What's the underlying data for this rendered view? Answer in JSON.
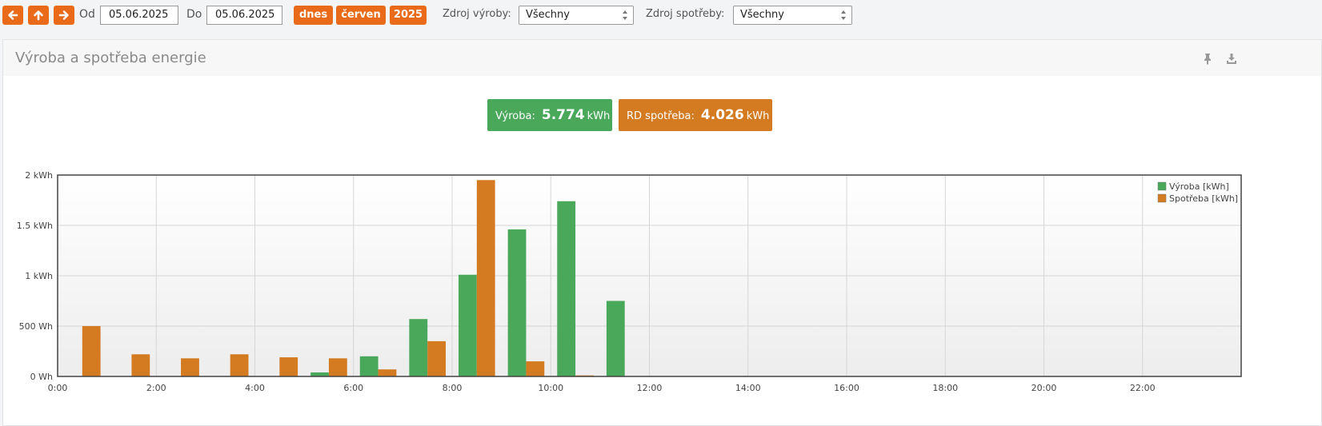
{
  "toolbar": {
    "from_label": "Od",
    "from_value": "05.06.2025",
    "to_label": "Do",
    "to_value": "05.06.2025",
    "quick_today": "dnes",
    "quick_month": "červen",
    "quick_year": "2025",
    "production_source_label": "Zdroj výroby:",
    "production_source_value": "Všechny",
    "consumption_source_label": "Zdroj spotřeby:",
    "consumption_source_value": "Všechny"
  },
  "icons": {
    "prev": "arrow-left-icon",
    "up": "arrow-up-icon",
    "next": "arrow-right-icon",
    "pin": "pin-icon",
    "download": "download-icon"
  },
  "panel": {
    "title": "Výroba a spotřeba energie",
    "production_summary": {
      "label": "Výroba:",
      "value": "5.774",
      "unit": "kWh",
      "color": "#4aa85a"
    },
    "consumption_summary": {
      "label": "RD spotřeba:",
      "value": "4.026",
      "unit": "kWh",
      "color": "#d47b22"
    }
  },
  "chart_data": {
    "type": "bar",
    "categories": [
      "0:00",
      "1:00",
      "2:00",
      "3:00",
      "4:00",
      "5:00",
      "6:00",
      "7:00",
      "8:00",
      "9:00",
      "10:00",
      "11:00",
      "12:00",
      "13:00",
      "14:00",
      "15:00",
      "16:00",
      "17:00",
      "18:00",
      "19:00",
      "20:00",
      "21:00",
      "22:00",
      "23:00"
    ],
    "series": [
      {
        "name": "Výroba [kWh]",
        "color": "#4aa85a",
        "values": [
          0,
          0,
          0,
          0,
          0,
          0.04,
          0.2,
          0.57,
          1.01,
          1.46,
          1.74,
          0.75,
          0,
          0,
          0,
          0,
          0,
          0,
          0,
          0,
          0,
          0,
          0,
          0
        ]
      },
      {
        "name": "Spotřeba [kWh]",
        "color": "#d47b22",
        "values": [
          0.5,
          0.22,
          0.18,
          0.22,
          0.19,
          0.18,
          0.07,
          0.35,
          1.95,
          0.15,
          0.01,
          0,
          0,
          0,
          0,
          0,
          0,
          0,
          0,
          0,
          0,
          0,
          0,
          0
        ]
      }
    ],
    "x_tick_labels": [
      "0:00",
      "2:00",
      "4:00",
      "6:00",
      "8:00",
      "10:00",
      "12:00",
      "14:00",
      "16:00",
      "18:00",
      "20:00",
      "22:00"
    ],
    "y_tick_labels": [
      "0 Wh",
      "500 Wh",
      "1 kWh",
      "1.5 kWh",
      "2 kWh"
    ],
    "y_tick_values": [
      0,
      0.5,
      1,
      1.5,
      2
    ],
    "ylim": [
      0,
      2
    ],
    "grid": true,
    "legend_position": "top-right"
  }
}
